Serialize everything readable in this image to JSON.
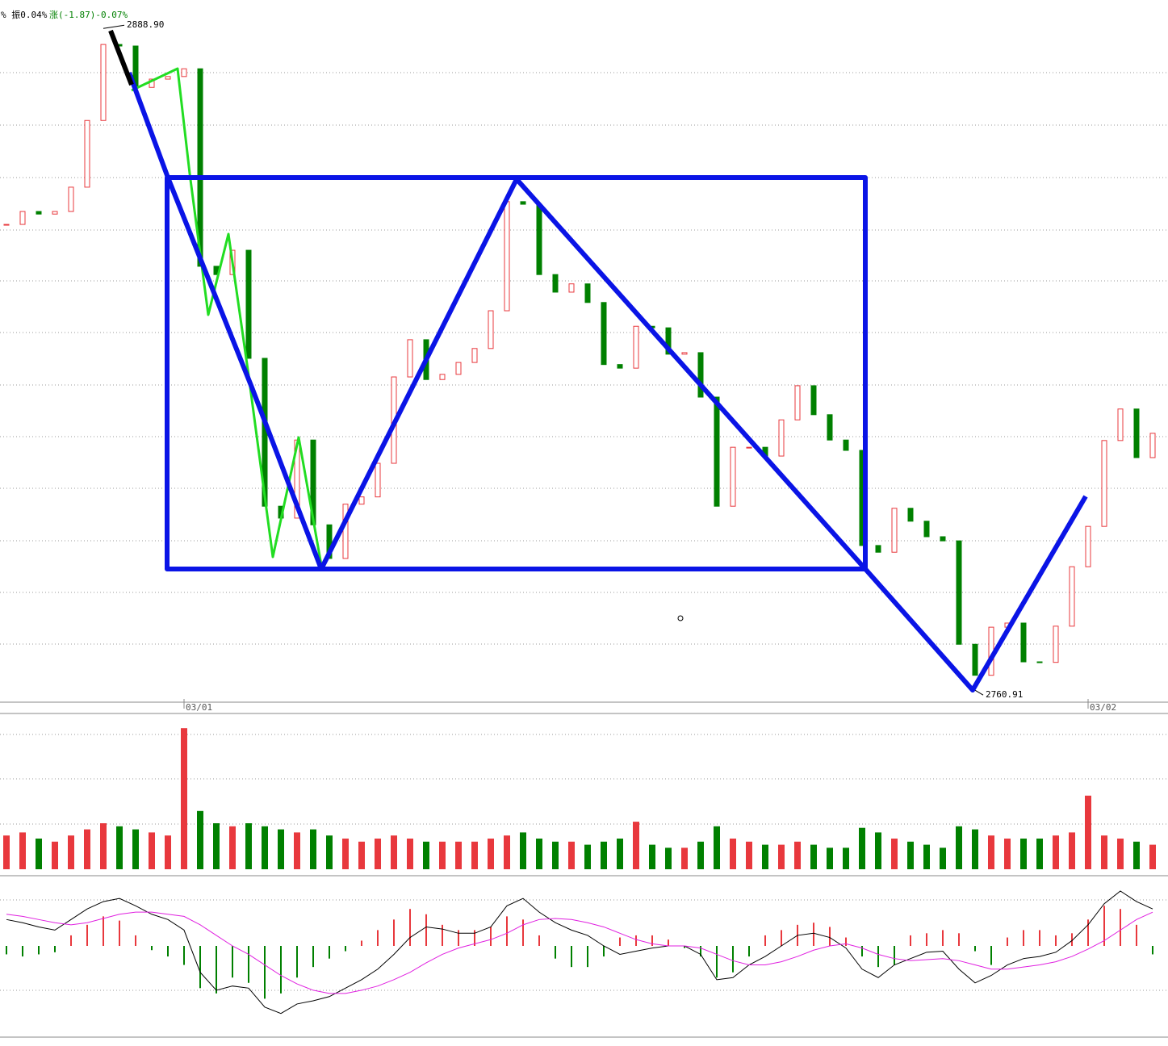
{
  "chart_data": {
    "type": "candlestick",
    "header": {
      "amplitude": "% 振0.04%",
      "change": "涨(-1.87)-0.07%"
    },
    "colors": {
      "up": "#e8383d",
      "down": "#008000"
    },
    "ylim": [
      2758.6,
      2894.4
    ],
    "high": {
      "value": 2888.9,
      "label": "2888.90"
    },
    "low": {
      "value": 2760.91,
      "label": "2760.91"
    },
    "categories": [
      null,
      null,
      null,
      null,
      null,
      null,
      null,
      null,
      null,
      null,
      null,
      "03/01",
      null,
      null,
      null,
      null,
      null,
      null,
      null,
      null,
      null,
      null,
      null,
      null,
      null,
      null,
      null,
      null,
      null,
      null,
      null,
      null,
      null,
      null,
      null,
      null,
      null,
      null,
      null,
      null,
      null,
      null,
      null,
      null,
      null,
      null,
      null,
      null,
      null,
      null,
      null,
      null,
      null,
      null,
      null,
      null,
      null,
      null,
      null,
      null,
      null,
      null,
      null,
      null,
      null,
      null,
      null,
      "03/02",
      null,
      null,
      null,
      null
    ],
    "closes": [
      2851.0,
      2853.5,
      2853.0,
      2853.5,
      2858.2,
      2871.1,
      2885.8,
      2885.5,
      2877.5,
      2879.1,
      2879.6,
      2881.1,
      2842.9,
      2841.3,
      2846.0,
      2825.1,
      2796.5,
      2794.2,
      2809.3,
      2792.9,
      2786.4,
      2796.9,
      2798.3,
      2804.8,
      2821.5,
      2828.7,
      2821.0,
      2822.0,
      2824.3,
      2827.0,
      2834.3,
      2855.4,
      2854.9,
      2841.3,
      2837.9,
      2839.5,
      2835.9,
      2823.9,
      2823.2,
      2831.3,
      2831.0,
      2825.9,
      2826.2,
      2817.6,
      2796.5,
      2807.9,
      2807.9,
      2806.2,
      2813.2,
      2819.8,
      2814.2,
      2809.3,
      2807.3,
      2788.9,
      2787.6,
      2796.1,
      2793.6,
      2790.6,
      2789.8,
      2769.8,
      2763.8,
      2773.1,
      2773.9,
      2766.4,
      2766.3,
      2773.3,
      2784.8,
      2792.6,
      2809.2,
      2815.3,
      2805.9,
      2810.6
    ],
    "volume": {
      "ylim": [
        0,
        100
      ],
      "values": [
        22,
        24,
        20,
        18,
        22,
        26,
        30,
        28,
        26,
        24,
        22,
        92,
        38,
        30,
        28,
        30,
        28,
        26,
        24,
        26,
        22,
        20,
        18,
        20,
        22,
        20,
        18,
        18,
        18,
        18,
        20,
        22,
        24,
        20,
        18,
        18,
        16,
        18,
        20,
        31,
        16,
        14,
        14,
        18,
        28,
        20,
        18,
        16,
        16,
        18,
        16,
        14,
        14,
        27,
        24,
        20,
        18,
        16,
        14,
        28,
        26,
        22,
        20,
        20,
        20,
        22,
        24,
        48,
        22,
        20,
        18,
        16
      ]
    },
    "macd": {
      "ylim": [
        -65,
        65
      ],
      "dif_color": "#000000",
      "dea_color": "#e020e0",
      "histogram": [
        -8,
        -10,
        -8,
        -6,
        10,
        20,
        28,
        24,
        10,
        -4,
        -10,
        -18,
        -40,
        -45,
        -30,
        -35,
        -50,
        -45,
        -30,
        -20,
        -12,
        -5,
        5,
        15,
        25,
        35,
        30,
        20,
        15,
        15,
        18,
        28,
        25,
        10,
        -12,
        -20,
        -20,
        -10,
        8,
        10,
        10,
        6,
        -2,
        -10,
        -30,
        -25,
        -10,
        10,
        15,
        20,
        22,
        18,
        8,
        -10,
        -20,
        -18,
        10,
        12,
        15,
        12,
        -5,
        -18,
        8,
        15,
        15,
        10,
        12,
        25,
        38,
        35,
        20,
        -8
      ],
      "dif": [
        25,
        22,
        18,
        15,
        25,
        35,
        42,
        45,
        38,
        30,
        25,
        15,
        -25,
        -42,
        -38,
        -40,
        -58,
        -64,
        -55,
        -52,
        -48,
        -40,
        -32,
        -22,
        -8,
        8,
        18,
        16,
        12,
        12,
        18,
        38,
        45,
        32,
        22,
        15,
        10,
        0,
        -8,
        -5,
        -2,
        0,
        0,
        -8,
        -32,
        -30,
        -18,
        -10,
        0,
        10,
        12,
        8,
        -2,
        -22,
        -30,
        -18,
        -12,
        -6,
        -5,
        -22,
        -35,
        -28,
        -18,
        -12,
        -10,
        -6,
        5,
        20,
        40,
        52,
        42,
        35
      ],
      "dea": [
        30,
        28,
        25,
        22,
        20,
        22,
        26,
        30,
        32,
        32,
        30,
        28,
        20,
        10,
        0,
        -8,
        -18,
        -28,
        -36,
        -42,
        -45,
        -45,
        -42,
        -38,
        -32,
        -25,
        -16,
        -8,
        -2,
        2,
        6,
        12,
        20,
        25,
        26,
        25,
        22,
        18,
        12,
        6,
        2,
        0,
        0,
        -2,
        -8,
        -14,
        -18,
        -18,
        -15,
        -10,
        -4,
        0,
        2,
        -2,
        -8,
        -12,
        -14,
        -13,
        -12,
        -14,
        -18,
        -22,
        -22,
        -20,
        -18,
        -15,
        -10,
        -3,
        5,
        15,
        25,
        32
      ]
    }
  }
}
